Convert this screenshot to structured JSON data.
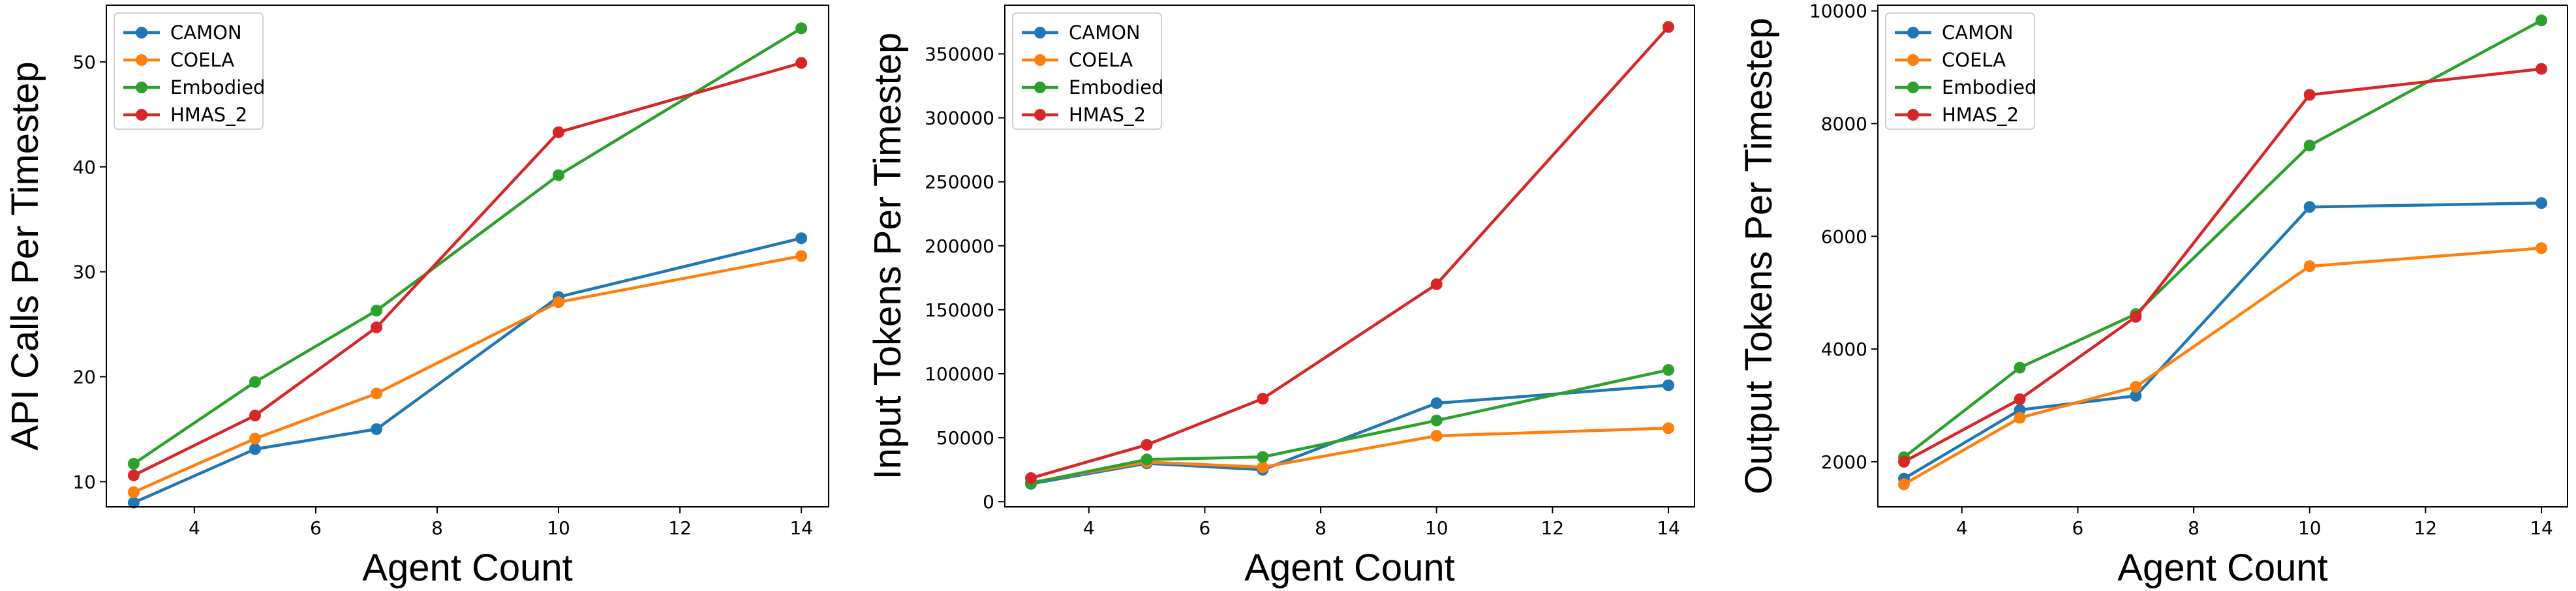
{
  "chart_data": [
    {
      "type": "line",
      "title": "",
      "xlabel": "Agent Count",
      "ylabel": "API Calls Per Timestep",
      "x": [
        3,
        5,
        7,
        10,
        14
      ],
      "xlim": [
        2.55,
        14.45
      ],
      "ylim": [
        7.6,
        55.4
      ],
      "xticks": [
        4,
        6,
        8,
        10,
        12,
        14
      ],
      "yticks": [
        10,
        20,
        30,
        40,
        50
      ],
      "legend_position": "upper-left",
      "series": [
        {
          "name": "CAMON",
          "color": "#1f77b4",
          "values": [
            8.0,
            13.1,
            15.0,
            27.6,
            33.2
          ]
        },
        {
          "name": "COELA",
          "color": "#ff7f0e",
          "values": [
            9.0,
            14.1,
            18.4,
            27.1,
            31.5
          ]
        },
        {
          "name": "Embodied",
          "color": "#2ca02c",
          "values": [
            11.7,
            19.5,
            26.3,
            39.2,
            53.2
          ]
        },
        {
          "name": "HMAS_2",
          "color": "#d62728",
          "values": [
            10.6,
            16.3,
            24.7,
            43.3,
            49.9
          ]
        }
      ]
    },
    {
      "type": "line",
      "title": "",
      "xlabel": "Agent Count",
      "ylabel": "Input Tokens Per Timestep",
      "x": [
        3,
        5,
        7,
        10,
        14
      ],
      "xlim": [
        2.55,
        14.45
      ],
      "ylim": [
        -4000,
        388000
      ],
      "xticks": [
        4,
        6,
        8,
        10,
        12,
        14
      ],
      "yticks": [
        0,
        50000,
        100000,
        150000,
        200000,
        250000,
        300000,
        350000
      ],
      "legend_position": "upper-left",
      "series": [
        {
          "name": "CAMON",
          "color": "#1f77b4",
          "values": [
            14000,
            30000,
            25000,
            77000,
            91000
          ]
        },
        {
          "name": "COELA",
          "color": "#ff7f0e",
          "values": [
            15000,
            31000,
            27000,
            51500,
            57500
          ]
        },
        {
          "name": "Embodied",
          "color": "#2ca02c",
          "values": [
            14500,
            33000,
            35000,
            63500,
            103000
          ]
        },
        {
          "name": "HMAS_2",
          "color": "#d62728",
          "values": [
            18500,
            44500,
            80500,
            170000,
            371000
          ]
        }
      ]
    },
    {
      "type": "line",
      "title": "",
      "xlabel": "Agent Count",
      "ylabel": "Output Tokens Per Timestep",
      "x": [
        3,
        5,
        7,
        10,
        14
      ],
      "xlim": [
        2.55,
        14.45
      ],
      "ylim": [
        1200,
        10100
      ],
      "xticks": [
        4,
        6,
        8,
        10,
        12,
        14
      ],
      "yticks": [
        2000,
        4000,
        6000,
        8000,
        10000
      ],
      "legend_position": "upper-left",
      "series": [
        {
          "name": "CAMON",
          "color": "#1f77b4",
          "values": [
            1700,
            2920,
            3170,
            6520,
            6590
          ]
        },
        {
          "name": "COELA",
          "color": "#ff7f0e",
          "values": [
            1600,
            2780,
            3330,
            5470,
            5790
          ]
        },
        {
          "name": "Embodied",
          "color": "#2ca02c",
          "values": [
            2080,
            3670,
            4620,
            7610,
            9830
          ]
        },
        {
          "name": "HMAS_2",
          "color": "#d62728",
          "values": [
            2000,
            3110,
            4570,
            8510,
            8970
          ]
        }
      ]
    }
  ]
}
